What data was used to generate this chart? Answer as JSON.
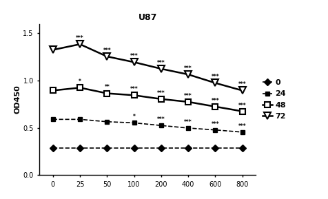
{
  "title": "U87",
  "xlabel": "",
  "ylabel": "OD450",
  "x_values": [
    0,
    25,
    50,
    100,
    200,
    400,
    600,
    800
  ],
  "series": [
    {
      "label": "0",
      "y": [
        0.29,
        0.29,
        0.29,
        0.29,
        0.29,
        0.29,
        0.29,
        0.29
      ],
      "linestyle": "--",
      "marker": "D",
      "markersize": 5,
      "color": "#000000",
      "linewidth": 1.2,
      "markerfacecolor": "black",
      "markeredgewidth": 1.0,
      "annotations": [
        "",
        "",
        "",
        "",
        "",
        "",
        "",
        ""
      ]
    },
    {
      "label": "24",
      "y": [
        0.59,
        0.59,
        0.565,
        0.553,
        0.525,
        0.498,
        0.478,
        0.455
      ],
      "linestyle": "--",
      "marker": "s",
      "markersize": 5,
      "color": "#000000",
      "linewidth": 1.2,
      "markerfacecolor": "black",
      "markeredgewidth": 1.0,
      "annotations": [
        "",
        "",
        "",
        "*",
        "***",
        "***",
        "***",
        "***"
      ]
    },
    {
      "label": "48",
      "y": [
        0.895,
        0.925,
        0.865,
        0.845,
        0.805,
        0.775,
        0.725,
        0.675
      ],
      "linestyle": "-",
      "marker": "s",
      "markersize": 6,
      "color": "#000000",
      "linewidth": 1.8,
      "markerfacecolor": "white",
      "markeredgewidth": 1.5,
      "annotations": [
        "",
        "*",
        "**",
        "***",
        "***",
        "***",
        "***",
        "***"
      ]
    },
    {
      "label": "72",
      "y": [
        1.325,
        1.385,
        1.255,
        1.195,
        1.125,
        1.065,
        0.975,
        0.895
      ],
      "linestyle": "-",
      "marker": "v",
      "markersize": 7,
      "color": "#000000",
      "linewidth": 1.8,
      "markerfacecolor": "white",
      "markeredgewidth": 1.5,
      "annotations": [
        "",
        "***",
        "***",
        "***",
        "***",
        "***",
        "***",
        "***"
      ]
    }
  ],
  "ylim": [
    0.0,
    1.6
  ],
  "yticks": [
    0.0,
    0.5,
    1.0,
    1.5
  ],
  "annotation_fontsize": 5.5,
  "tick_fontsize": 7,
  "ylabel_fontsize": 8,
  "title_fontsize": 9,
  "legend_fontsize": 8,
  "background_color": "#ffffff"
}
